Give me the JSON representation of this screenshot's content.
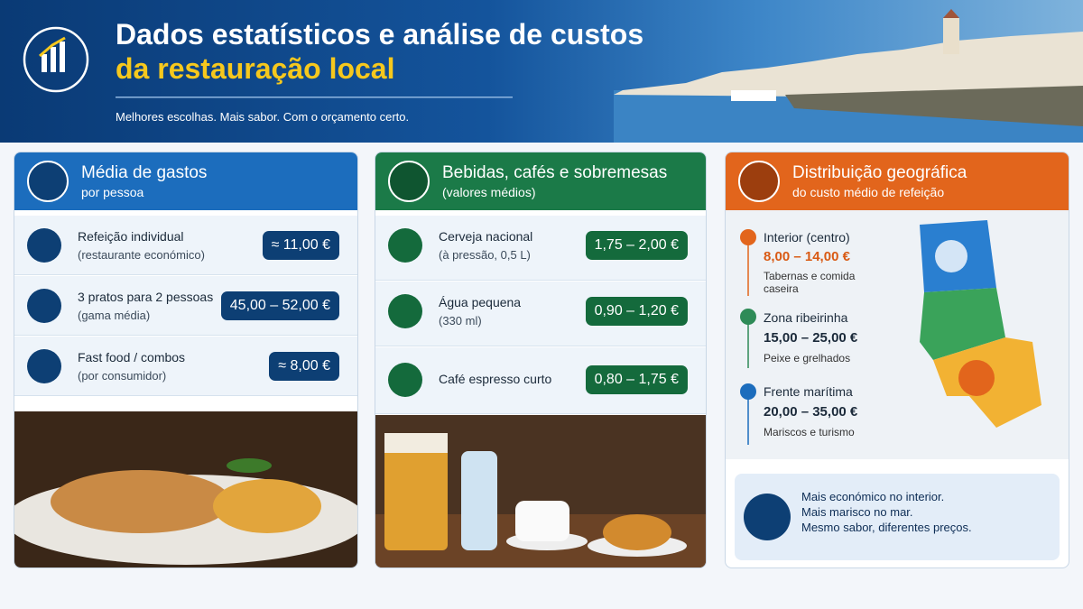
{
  "header": {
    "title_line1": "Dados estatísticos e análise de custos",
    "title_line2": "da restauração local",
    "tagline": "Melhores escolhas. Mais sabor. Com o orçamento certo."
  },
  "panels": [
    {
      "title": "Média de gastos",
      "subtitle": "por pessoa",
      "items": [
        {
          "label": "Refeição individual",
          "note": "(restaurante económico)",
          "price": "≈ 11,00 €"
        },
        {
          "label": "3 pratos para 2 pessoas",
          "note": "(gama média)",
          "price": "45,00 – 52,00 €"
        },
        {
          "label": "Fast food / combos",
          "note": "(por consumidor)",
          "price": "≈ 8,00 €"
        }
      ]
    },
    {
      "title": "Bebidas, cafés e sobremesas",
      "subtitle": "(valores médios)",
      "items": [
        {
          "label": "Cerveja nacional",
          "note": "(à pressão, 0,5 L)",
          "price": "1,75 – 2,00 €"
        },
        {
          "label": "Água pequena",
          "note": "(330 ml)",
          "price": "0,90 – 1,20 €"
        },
        {
          "label": "Café espresso curto",
          "price": "0,80 – 1,75 €"
        }
      ]
    },
    {
      "title": "Distribuição geográfica",
      "subtitle": "do custo médio de refeição",
      "items": [
        {
          "label": "Interior (centro)",
          "price": "8,00 – 14,00 €",
          "note": "Tabernas e comida caseira"
        },
        {
          "label": "Zona ribeirinha",
          "price": "15,00 – 25,00 €",
          "note": "Peixe e grelhados"
        },
        {
          "label": "Frente marítima",
          "price": "20,00 – 35,00 €",
          "note": "Mariscos e turismo"
        }
      ],
      "summary": [
        "Mais económico no interior.",
        "Mais marisco no mar.",
        "Mesmo sabor, diferentes preços."
      ]
    }
  ]
}
